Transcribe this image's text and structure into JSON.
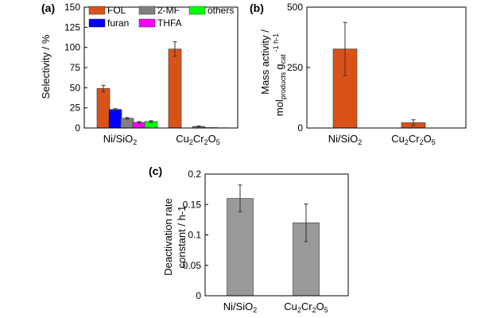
{
  "chart_data": [
    {
      "panel": "(a)",
      "type": "bar",
      "categories": [
        {
          "main": "Ni/SiO",
          "subs": [
            "2"
          ]
        },
        {
          "main": "Cu",
          "subs": [
            "2",
            "Cr",
            "2",
            "O",
            "5"
          ]
        }
      ],
      "series": [
        {
          "name": "FOL",
          "color": "#D95319",
          "values": [
            49,
            98
          ],
          "errors": [
            4,
            9
          ]
        },
        {
          "name": "furan",
          "color": "#0000FF",
          "values": [
            23,
            0
          ],
          "errors": [
            1,
            0
          ]
        },
        {
          "name": "2-MF",
          "color": "#808080",
          "values": [
            12,
            2
          ],
          "errors": [
            1,
            0.5
          ]
        },
        {
          "name": "THFA",
          "color": "#FF00FF",
          "values": [
            7,
            0.5
          ],
          "errors": [
            1,
            0
          ]
        },
        {
          "name": "others",
          "color": "#00FF00",
          "values": [
            8,
            0.3
          ],
          "errors": [
            1,
            0
          ]
        }
      ],
      "ylabel": "Selectivity / %",
      "ylim": [
        0,
        150
      ],
      "yticks": [
        "0",
        "25",
        "50",
        "75",
        "100",
        "125",
        "150"
      ],
      "legend": "top, two rows"
    },
    {
      "panel": "(b)",
      "type": "bar",
      "categories": [
        {
          "main": "Ni/SiO",
          "subs": [
            "2"
          ]
        },
        {
          "main": "Cu",
          "subs": [
            "2",
            "Cr",
            "2",
            "O",
            "5"
          ]
        }
      ],
      "series": [
        {
          "color": "#D95319",
          "values": [
            327,
            22
          ],
          "errors": [
            110,
            12
          ]
        }
      ],
      "ylabel_line1": "Mass activity /",
      "ylabel_line2": {
        "a": "mol",
        "a_sub": "products",
        "b": "g",
        "b_sub": "cat",
        "tail": "-1 h-1"
      },
      "ylim": [
        0,
        500
      ],
      "yticks": [
        "0",
        "250",
        "500"
      ]
    },
    {
      "panel": "(c)",
      "type": "bar",
      "categories": [
        {
          "main": "Ni/SiO",
          "subs": [
            "2"
          ]
        },
        {
          "main": "Cu",
          "subs": [
            "2",
            "Cr",
            "2",
            "O",
            "5"
          ]
        }
      ],
      "series": [
        {
          "color": "#999999",
          "values": [
            0.16,
            0.12
          ],
          "errors": [
            0.022,
            0.031
          ]
        }
      ],
      "ylabel_line1": "Deactivation rate",
      "ylabel_line2": "constant / h-1",
      "ylim": [
        0,
        0.2
      ],
      "yticks": [
        "0",
        "0.05",
        "0.1",
        "0.15",
        "0.2"
      ]
    }
  ]
}
